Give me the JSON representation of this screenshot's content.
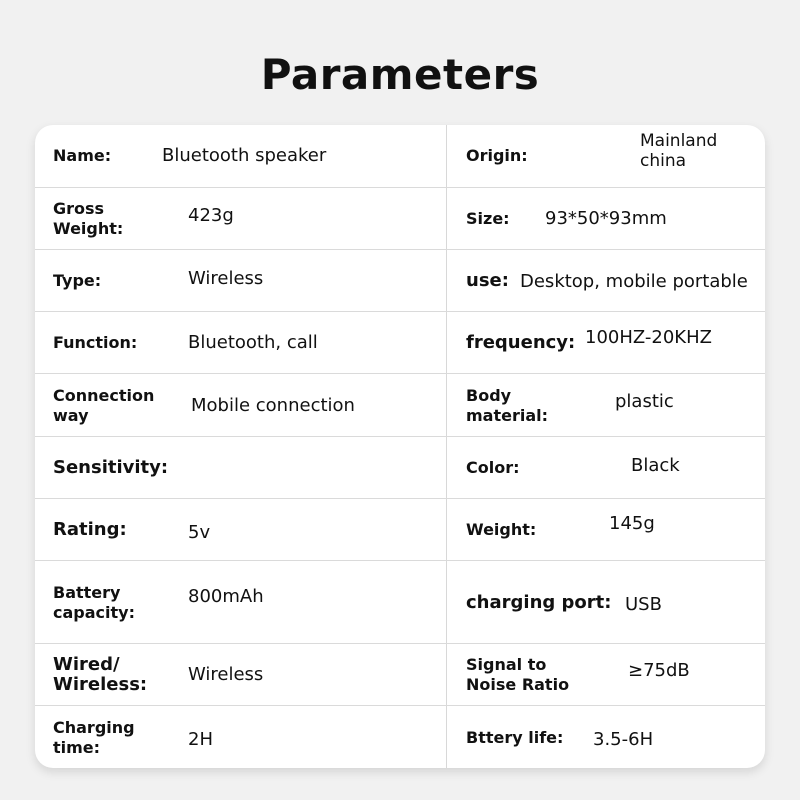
{
  "title": "Parameters",
  "rows": [
    {
      "l_label": "Name:",
      "l_value": "Bluetooth speaker",
      "r_label": "Origin:",
      "r_value": "Mainland\nchina"
    },
    {
      "l_label": "Gross\nWeight:",
      "l_value": "423g",
      "r_label": "Size:",
      "r_value": "93*50*93mm"
    },
    {
      "l_label": "Type:",
      "l_value": "Wireless",
      "r_label": "use:",
      "r_value": "Desktop, mobile portable"
    },
    {
      "l_label": "Function:",
      "l_value": "Bluetooth, call",
      "r_label": "frequency:",
      "r_value": "100HZ-20KHZ"
    },
    {
      "l_label": "Connection\nway",
      "l_value": "Mobile connection",
      "r_label": "Body\nmaterial:",
      "r_value": "plastic"
    },
    {
      "l_label": "Sensitivity:",
      "l_value": "",
      "r_label": "Color:",
      "r_value": "Black"
    },
    {
      "l_label": "Rating:",
      "l_value": "5v",
      "r_label": "Weight:",
      "r_value": "145g"
    },
    {
      "l_label": "Battery\ncapacity:",
      "l_value": "800mAh",
      "r_label": "charging port:",
      "r_value": "USB"
    },
    {
      "l_label": "Wired/\nWireless:",
      "l_value": "Wireless",
      "r_label": "Signal to\nNoise Ratio",
      "r_value": "≥75dB"
    },
    {
      "l_label": "Charging\ntime:",
      "l_value": "2H",
      "r_label": "Bttery life:",
      "r_value": "3.5-6H"
    }
  ]
}
